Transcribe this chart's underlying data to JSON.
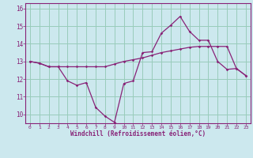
{
  "xlabel": "Windchill (Refroidissement éolien,°C)",
  "background_color": "#cce8ee",
  "grid_color": "#99ccbb",
  "line_color": "#882277",
  "x_hours": [
    0,
    1,
    2,
    3,
    4,
    5,
    6,
    7,
    8,
    9,
    10,
    11,
    12,
    13,
    14,
    15,
    16,
    17,
    18,
    19,
    20,
    21,
    22,
    23
  ],
  "y_windchill": [
    13.0,
    12.9,
    12.7,
    12.7,
    11.9,
    11.65,
    11.8,
    10.4,
    9.9,
    9.55,
    11.75,
    11.9,
    13.5,
    13.55,
    14.6,
    15.05,
    15.55,
    14.7,
    14.2,
    14.2,
    13.0,
    12.55,
    12.6,
    12.2
  ],
  "y_temp": [
    13.0,
    12.9,
    12.7,
    12.7,
    12.7,
    12.7,
    12.7,
    12.7,
    12.7,
    12.85,
    13.0,
    13.1,
    13.2,
    13.35,
    13.5,
    13.6,
    13.7,
    13.8,
    13.85,
    13.85,
    13.85,
    13.85,
    12.6,
    12.2
  ],
  "ylim": [
    9.5,
    16.3
  ],
  "yticks": [
    10,
    11,
    12,
    13,
    14,
    15,
    16
  ],
  "xlim": [
    -0.5,
    23.5
  ],
  "xticks": [
    0,
    1,
    2,
    3,
    4,
    5,
    6,
    7,
    8,
    9,
    10,
    11,
    12,
    13,
    14,
    15,
    16,
    17,
    18,
    19,
    20,
    21,
    22,
    23
  ]
}
